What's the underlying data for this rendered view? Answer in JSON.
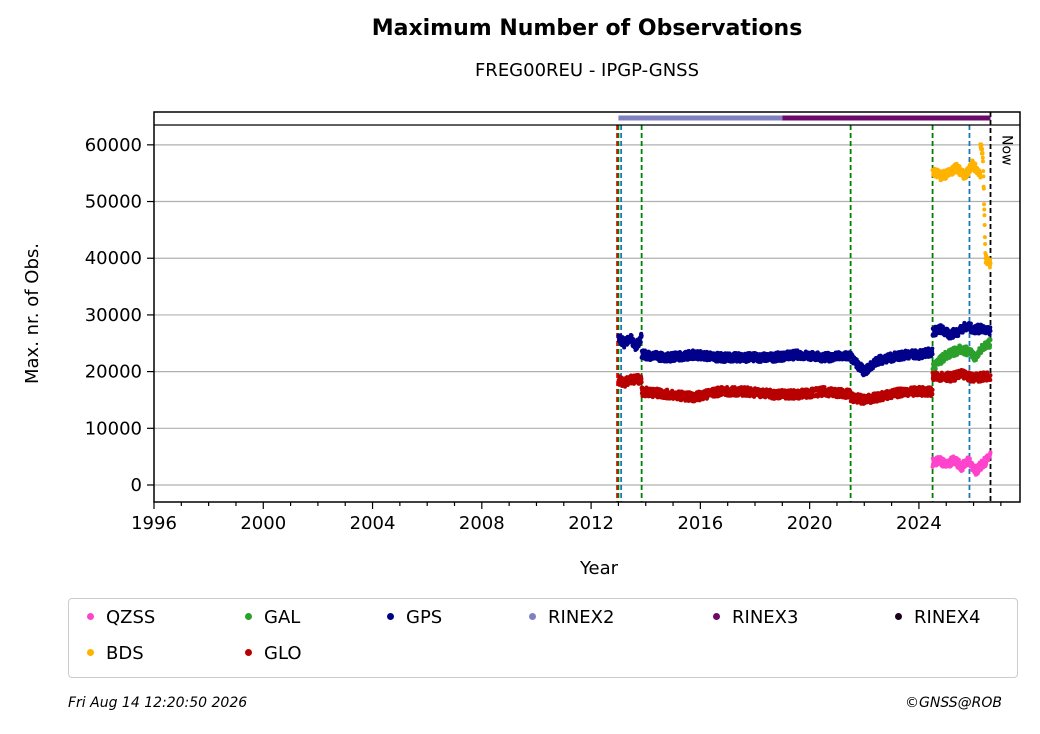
{
  "chart_data": {
    "type": "scatter",
    "title": "Maximum Number of Observations",
    "subtitle": "FREG00REU - IPGP-GNSS",
    "xlabel": "Year",
    "ylabel": "Max. nr. of Obs.",
    "xlim": [
      1996,
      2027.7
    ],
    "ylim": [
      -3000,
      63500
    ],
    "x_ticks": [
      1996,
      2000,
      2004,
      2008,
      2012,
      2016,
      2020,
      2024
    ],
    "y_ticks": [
      0,
      10000,
      20000,
      30000,
      40000,
      50000,
      60000
    ],
    "grid": "horizontal",
    "now_label": "Now",
    "now_x": 2026.62,
    "event_lines": [
      {
        "x": 2012.95,
        "color": "#ff0000"
      },
      {
        "x": 2013.0,
        "color": "#008000"
      },
      {
        "x": 2013.1,
        "color": "#1f77b4"
      },
      {
        "x": 2013.85,
        "color": "#008000"
      },
      {
        "x": 2021.5,
        "color": "#008000"
      },
      {
        "x": 2024.5,
        "color": "#008000"
      },
      {
        "x": 2025.85,
        "color": "#1f77b4"
      }
    ],
    "rinex_bar": [
      {
        "name": "RINEX2",
        "from": 2013.0,
        "to": 2019.0,
        "color": "#8080c0"
      },
      {
        "name": "RINEX3",
        "from": 2019.0,
        "to": 2026.62,
        "color": "#6b0a6b"
      }
    ],
    "series": [
      {
        "name": "QZSS",
        "color": "#ff44cc",
        "segments": [
          {
            "from": 2024.5,
            "to": 2026.62,
            "values": [
              4000,
              4300,
              3500,
              4500,
              3200,
              4200,
              2500,
              3800,
              5000
            ]
          }
        ]
      },
      {
        "name": "GAL",
        "color": "#2ca02c",
        "segments": [
          {
            "from": 2024.5,
            "to": 2026.62,
            "values": [
              20500,
              22000,
              23000,
              23500,
              24000,
              23500,
              22500,
              24500,
              25000
            ]
          }
        ]
      },
      {
        "name": "GPS",
        "color": "#00008b",
        "segments": [
          {
            "from": 2013.0,
            "to": 2013.85,
            "values": [
              26000,
              25000,
              26000,
              24500,
              26000
            ]
          },
          {
            "from": 2013.85,
            "to": 2021.5,
            "values": [
              23000,
              22500,
              23000,
              22500,
              22500,
              22500,
              23000,
              22500,
              22800
            ]
          },
          {
            "from": 2021.5,
            "to": 2024.5,
            "values": [
              22500,
              20000,
              22000,
              22500,
              23000,
              23000,
              23500
            ]
          },
          {
            "from": 2024.5,
            "to": 2026.62,
            "values": [
              27000,
              27500,
              26500,
              27000,
              28000,
              27500,
              27500,
              27000
            ]
          }
        ]
      },
      {
        "name": "GLO",
        "color": "#b80000",
        "segments": [
          {
            "from": 2013.0,
            "to": 2013.85,
            "values": [
              18500,
              18000,
              18500,
              18700,
              18500
            ]
          },
          {
            "from": 2013.85,
            "to": 2021.5,
            "values": [
              16500,
              16000,
              15500,
              16500,
              16500,
              16000,
              16000,
              16500,
              16000
            ]
          },
          {
            "from": 2021.5,
            "to": 2024.5,
            "values": [
              15500,
              15000,
              15500,
              16000,
              16500,
              16500,
              16500
            ]
          },
          {
            "from": 2024.5,
            "to": 2026.62,
            "values": [
              19000,
              19200,
              19000,
              19500,
              19000,
              19000,
              19300
            ]
          }
        ]
      },
      {
        "name": "BDS",
        "color": "#ffb300",
        "segments": [
          {
            "from": 2024.5,
            "to": 2026.25,
            "values": [
              55500,
              54500,
              55000,
              56000,
              54500,
              56500,
              55000
            ]
          },
          {
            "from": 2026.25,
            "to": 2026.62,
            "values": [
              60000,
              58000,
              40000,
              39500,
              39000
            ]
          }
        ]
      },
      {
        "name": "RINEX2",
        "color": "#8080c0",
        "segments": []
      },
      {
        "name": "RINEX3",
        "color": "#6b0a6b",
        "segments": []
      },
      {
        "name": "RINEX4",
        "color": "#1a0018",
        "segments": []
      }
    ]
  },
  "footer": {
    "timestamp": "Fri Aug 14 12:20:50 2026",
    "credit": "©GNSS@ROB"
  },
  "legend": {
    "items": [
      {
        "label": "QZSS",
        "color": "#ff44cc"
      },
      {
        "label": "GAL",
        "color": "#2ca02c"
      },
      {
        "label": "GPS",
        "color": "#00008b"
      },
      {
        "label": "RINEX2",
        "color": "#8080c0"
      },
      {
        "label": "RINEX3",
        "color": "#6b0a6b"
      },
      {
        "label": "RINEX4",
        "color": "#1a0018"
      },
      {
        "label": "BDS",
        "color": "#ffb300"
      },
      {
        "label": "GLO",
        "color": "#b80000"
      }
    ]
  }
}
